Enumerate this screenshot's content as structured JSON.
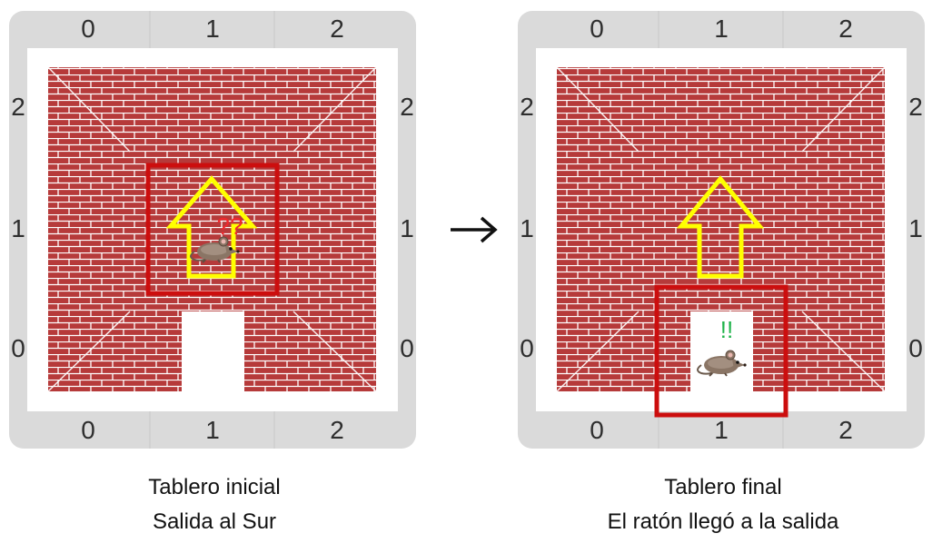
{
  "boards": [
    {
      "col_labels": [
        "0",
        "1",
        "2"
      ],
      "row_labels": [
        "2",
        "1",
        "0"
      ],
      "mouse_cell": [
        1,
        1
      ],
      "mouse_mark": "??",
      "mouse_mark_color": "#f0282d",
      "highlight_cell": [
        1,
        1
      ],
      "arrow_direction": "up",
      "caption_line1": "Tablero inicial",
      "caption_line2": "Salida al Sur"
    },
    {
      "col_labels": [
        "0",
        "1",
        "2"
      ],
      "row_labels": [
        "2",
        "1",
        "0"
      ],
      "mouse_cell": [
        1,
        0
      ],
      "mouse_mark": "!!",
      "mouse_mark_color": "#1fb34a",
      "highlight_cell": [
        1,
        0
      ],
      "arrow_direction": "up",
      "caption_line1": "Tablero final",
      "caption_line2": "El ratón llegó a la salida"
    }
  ],
  "colors": {
    "frame": "#dadada",
    "brick": "#b63a3a",
    "mortar": "#ffffff",
    "highlight": "#cc0e0e",
    "arrow": "#ffff00",
    "coord_text": "#2e2e2e"
  },
  "icons": {
    "mouse": "mouse-icon",
    "arrow": "up-arrow-icon",
    "transition": "right-arrow-icon"
  }
}
